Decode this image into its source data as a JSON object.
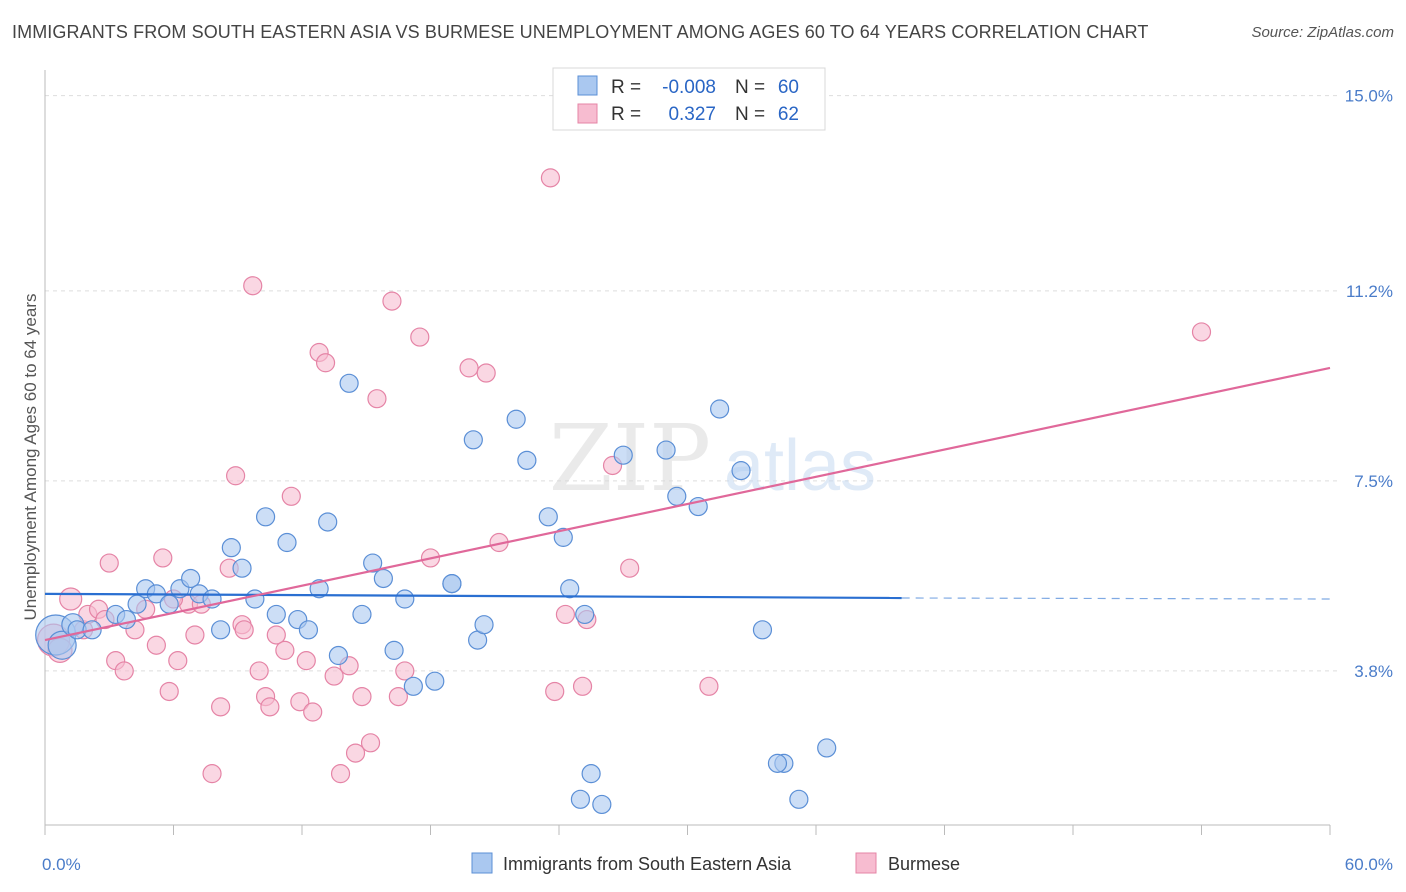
{
  "title": "IMMIGRANTS FROM SOUTH EASTERN ASIA VS BURMESE UNEMPLOYMENT AMONG AGES 60 TO 64 YEARS CORRELATION CHART",
  "source": "Source: ZipAtlas.com",
  "watermark": {
    "zip": "ZIP",
    "atlas": "atlas"
  },
  "colors": {
    "blue_fill": "#aac8f0",
    "blue_stroke": "#5b8fd6",
    "blue_line": "#2a6fd1",
    "pink_fill": "#f7bcd0",
    "pink_stroke": "#e584a6",
    "pink_line": "#e0689a",
    "tick_text": "#4a7cc9",
    "grid": "#dddddd"
  },
  "legend_top": {
    "rows": [
      {
        "r_label": "R =",
        "r_value": "-0.008",
        "n_label": "N =",
        "n_value": "60",
        "series": "blue"
      },
      {
        "r_label": "R =",
        "r_value": "0.327",
        "n_label": "N =",
        "n_value": "62",
        "series": "pink"
      }
    ]
  },
  "chart_data": {
    "type": "scatter",
    "ylabel": "Unemployment Among Ages 60 to 64 years",
    "xlim": [
      0,
      60
    ],
    "ylim": [
      0.8,
      15.5
    ],
    "y_ticks": [
      {
        "value": 3.8,
        "label": "3.8%"
      },
      {
        "value": 7.5,
        "label": "7.5%"
      },
      {
        "value": 11.2,
        "label": "11.2%"
      },
      {
        "value": 15.0,
        "label": "15.0%"
      }
    ],
    "x_tick_labels": [
      {
        "value": 0,
        "label": "0.0%"
      },
      {
        "value": 60,
        "label": "60.0%"
      }
    ],
    "legend": [
      "Immigrants from South Eastern Asia",
      "Burmese"
    ],
    "series": [
      {
        "name": "Immigrants from South Eastern Asia",
        "trend": {
          "x0": 0,
          "y0": 5.3,
          "x1": 40,
          "y1": 5.22,
          "x_dash_end": 60,
          "y_dash_end": 5.2
        },
        "points": [
          [
            0.5,
            4.5,
            20
          ],
          [
            0.8,
            4.3,
            14
          ],
          [
            1.3,
            4.7,
            11
          ],
          [
            1.5,
            4.6,
            9
          ],
          [
            2.2,
            4.6,
            9
          ],
          [
            3.3,
            4.9,
            9
          ],
          [
            3.8,
            4.8,
            9
          ],
          [
            4.3,
            5.1,
            9
          ],
          [
            4.7,
            5.4,
            9
          ],
          [
            5.2,
            5.3,
            9
          ],
          [
            5.8,
            5.1,
            9
          ],
          [
            6.3,
            5.4,
            9
          ],
          [
            6.8,
            5.6,
            9
          ],
          [
            7.2,
            5.3,
            9
          ],
          [
            7.8,
            5.2,
            9
          ],
          [
            8.2,
            4.6,
            9
          ],
          [
            8.7,
            6.2,
            9
          ],
          [
            9.2,
            5.8,
            9
          ],
          [
            9.8,
            5.2,
            9
          ],
          [
            10.3,
            6.8,
            9
          ],
          [
            10.8,
            4.9,
            9
          ],
          [
            11.3,
            6.3,
            9
          ],
          [
            11.8,
            4.8,
            9
          ],
          [
            12.3,
            4.6,
            9
          ],
          [
            12.8,
            5.4,
            9
          ],
          [
            13.2,
            6.7,
            9
          ],
          [
            13.7,
            4.1,
            9
          ],
          [
            14.2,
            9.4,
            9
          ],
          [
            14.8,
            4.9,
            9
          ],
          [
            15.3,
            5.9,
            9
          ],
          [
            15.8,
            5.6,
            9
          ],
          [
            16.3,
            4.2,
            9
          ],
          [
            16.8,
            5.2,
            9
          ],
          [
            17.2,
            3.5,
            9
          ],
          [
            18.2,
            3.6,
            9
          ],
          [
            19.0,
            5.5,
            9
          ],
          [
            19.0,
            5.5,
            9
          ],
          [
            20.2,
            4.4,
            9
          ],
          [
            20.5,
            4.7,
            9
          ],
          [
            20.0,
            8.3,
            9
          ],
          [
            22.0,
            8.7,
            9
          ],
          [
            22.5,
            7.9,
            9
          ],
          [
            23.5,
            6.8,
            9
          ],
          [
            24.2,
            6.4,
            9
          ],
          [
            24.5,
            5.4,
            9
          ],
          [
            25.2,
            4.9,
            9
          ],
          [
            25.5,
            1.8,
            9
          ],
          [
            25.0,
            1.3,
            9
          ],
          [
            26.0,
            1.2,
            9
          ],
          [
            27.0,
            8.0,
            9
          ],
          [
            29.0,
            8.1,
            9
          ],
          [
            29.5,
            7.2,
            9
          ],
          [
            30.5,
            7.0,
            9
          ],
          [
            31.5,
            8.9,
            9
          ],
          [
            32.5,
            7.7,
            9
          ],
          [
            33.5,
            4.6,
            9
          ],
          [
            34.5,
            2.0,
            9
          ],
          [
            35.2,
            1.3,
            9
          ],
          [
            36.5,
            2.3,
            9
          ],
          [
            34.2,
            2.0,
            9
          ]
        ]
      },
      {
        "name": "Burmese",
        "trend": {
          "x0": 0,
          "y0": 4.4,
          "x1": 60,
          "y1": 9.7
        },
        "points": [
          [
            0.4,
            4.4,
            16
          ],
          [
            0.7,
            4.2,
            12
          ],
          [
            1.2,
            5.2,
            11
          ],
          [
            1.8,
            4.6,
            9
          ],
          [
            2.0,
            4.9,
            9
          ],
          [
            2.5,
            5.0,
            9
          ],
          [
            3.0,
            5.9,
            9
          ],
          [
            3.3,
            4.0,
            9
          ],
          [
            3.7,
            3.8,
            9
          ],
          [
            4.2,
            4.6,
            9
          ],
          [
            4.7,
            5.0,
            9
          ],
          [
            5.2,
            4.3,
            9
          ],
          [
            5.5,
            6.0,
            9
          ],
          [
            5.8,
            3.4,
            9
          ],
          [
            6.2,
            4.0,
            9
          ],
          [
            6.7,
            5.1,
            9
          ],
          [
            7.0,
            4.5,
            9
          ],
          [
            7.3,
            5.1,
            9
          ],
          [
            7.8,
            1.8,
            9
          ],
          [
            8.2,
            3.1,
            9
          ],
          [
            8.6,
            5.8,
            9
          ],
          [
            8.9,
            7.6,
            9
          ],
          [
            9.2,
            4.7,
            9
          ],
          [
            9.7,
            11.3,
            9
          ],
          [
            10.0,
            3.8,
            9
          ],
          [
            10.3,
            3.3,
            9
          ],
          [
            10.5,
            3.1,
            9
          ],
          [
            10.8,
            4.5,
            9
          ],
          [
            11.2,
            4.2,
            9
          ],
          [
            11.5,
            7.2,
            9
          ],
          [
            11.9,
            3.2,
            9
          ],
          [
            12.2,
            4.0,
            9
          ],
          [
            12.5,
            3.0,
            9
          ],
          [
            12.8,
            10.0,
            9
          ],
          [
            13.1,
            9.8,
            9
          ],
          [
            13.5,
            3.7,
            9
          ],
          [
            13.8,
            1.8,
            9
          ],
          [
            14.2,
            3.9,
            9
          ],
          [
            14.5,
            2.2,
            9
          ],
          [
            14.8,
            3.3,
            9
          ],
          [
            15.2,
            2.4,
            9
          ],
          [
            15.5,
            9.1,
            9
          ],
          [
            16.2,
            11.0,
            9
          ],
          [
            16.5,
            3.3,
            9
          ],
          [
            16.8,
            3.8,
            9
          ],
          [
            17.5,
            10.3,
            9
          ],
          [
            18.0,
            6.0,
            9
          ],
          [
            19.8,
            9.7,
            9
          ],
          [
            20.6,
            9.6,
            9
          ],
          [
            21.2,
            6.3,
            9
          ],
          [
            23.6,
            13.4,
            9
          ],
          [
            23.8,
            3.4,
            9
          ],
          [
            24.3,
            4.9,
            9
          ],
          [
            25.1,
            3.5,
            9
          ],
          [
            25.3,
            4.8,
            9
          ],
          [
            26.5,
            7.8,
            9
          ],
          [
            27.3,
            5.8,
            9
          ],
          [
            31.0,
            3.5,
            9
          ],
          [
            54.0,
            10.4,
            9
          ],
          [
            9.3,
            4.6,
            9
          ],
          [
            6.0,
            5.2,
            9
          ],
          [
            2.8,
            4.8,
            9
          ]
        ]
      }
    ]
  }
}
